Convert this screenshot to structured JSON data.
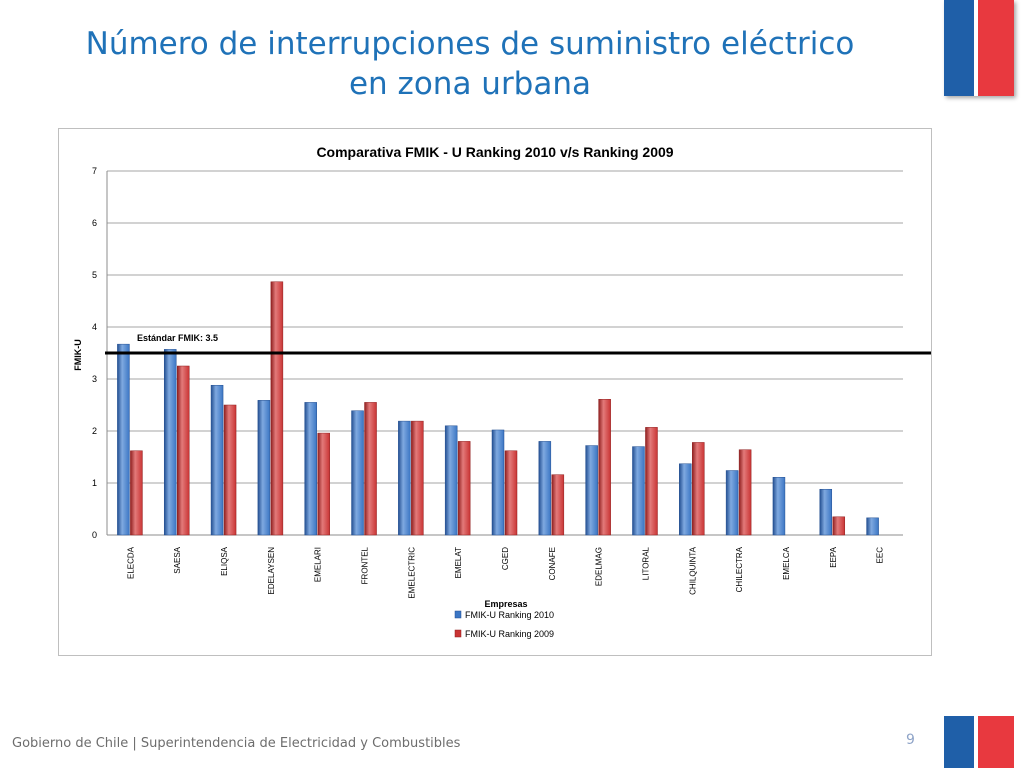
{
  "slide": {
    "title_line1": "Número de interrupciones de suministro eléctrico",
    "title_line2": "en zona urbana",
    "footer": "Gobierno de Chile | Superintendencia de Electricidad y Combustibles",
    "page_number": "9"
  },
  "colors": {
    "title": "#1f72b8",
    "series_2010": "#3b76c4",
    "series_2009": "#c93434",
    "flag_blue": "#1f5fa8",
    "flag_red": "#e8393f"
  },
  "chart_data": {
    "type": "bar",
    "title": "Comparativa FMIK - U Ranking 2010 v/s Ranking 2009",
    "xlabel": "Empresas",
    "ylabel": "FMIK-U",
    "ylim": [
      0,
      7
    ],
    "yticks": [
      0,
      1,
      2,
      3,
      4,
      5,
      6,
      7
    ],
    "grid": true,
    "legend_position": "bottom",
    "categories": [
      "ELECDA",
      "SAESA",
      "ELIQSA",
      "EDELAYSEN",
      "EMELARI",
      "FRONTEL",
      "EMELECTRIC",
      "EMELAT",
      "CGED",
      "CONAFE",
      "EDELMAG",
      "LITORAL",
      "CHILQUINTA",
      "CHILECTRA",
      "EMELCA",
      "EEPA",
      "EEC"
    ],
    "series": [
      {
        "name": "FMIK-U Ranking  2010",
        "values": [
          3.67,
          3.57,
          2.88,
          2.59,
          2.55,
          2.39,
          2.19,
          2.1,
          2.02,
          1.8,
          1.72,
          1.7,
          1.37,
          1.24,
          1.11,
          0.88,
          0.33
        ]
      },
      {
        "name": "FMIK-U Ranking  2009",
        "values": [
          1.62,
          3.25,
          2.5,
          4.87,
          1.96,
          2.55,
          2.19,
          1.8,
          1.62,
          1.16,
          2.61,
          2.07,
          1.78,
          1.64,
          null,
          0.35,
          null
        ]
      }
    ],
    "reference_line": {
      "label": "Estándar FMIK: 3.5",
      "value": 3.5
    }
  }
}
